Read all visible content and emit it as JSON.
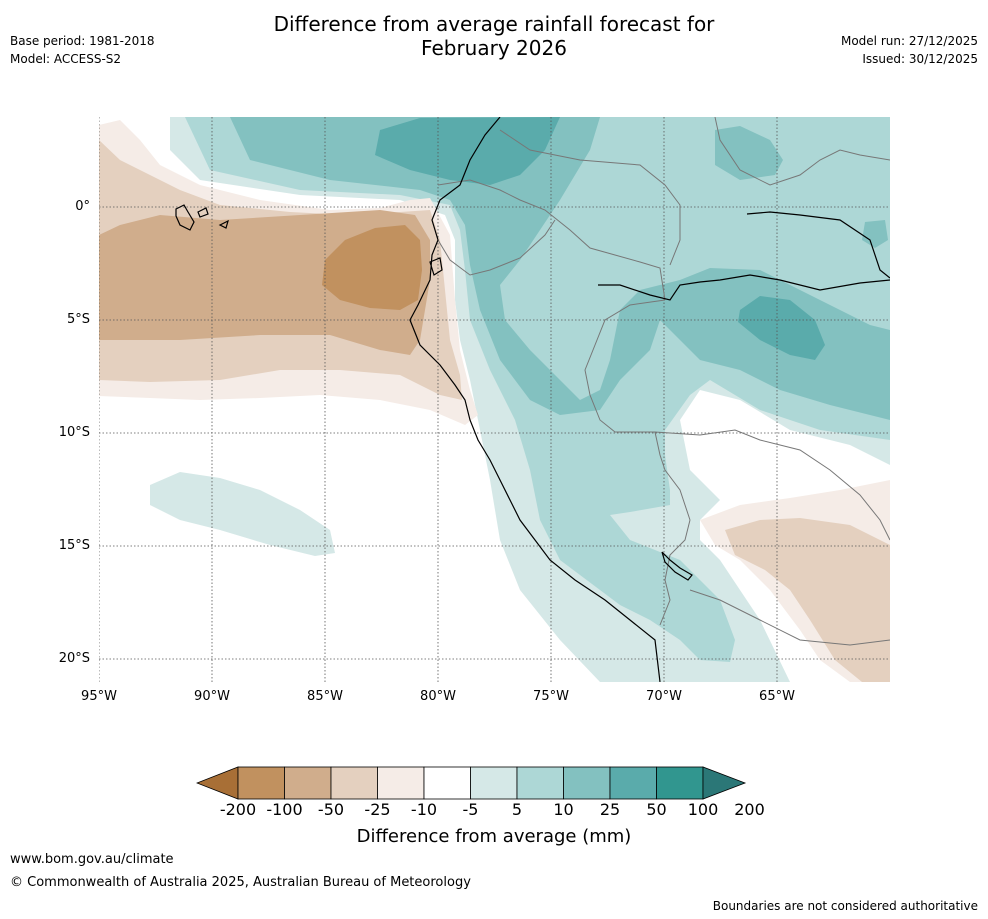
{
  "title": {
    "line1": "Difference from average rainfall forecast for",
    "line2": "February 2026"
  },
  "meta": {
    "base_period": "Base period: 1981-2018",
    "model": "Model: ACCESS-S2",
    "model_run": "Model run: 27/12/2025",
    "issued": "Issued: 30/12/2025"
  },
  "map": {
    "region": "Western South America",
    "lon_range": [
      -95,
      -60
    ],
    "lat_range": [
      -21,
      4
    ],
    "lat_labels": [
      "0°",
      "5°S",
      "10°S",
      "15°S",
      "20°S"
    ],
    "lon_labels": [
      "95°W",
      "90°W",
      "85°W",
      "80°W",
      "75°W",
      "70°W",
      "65°W"
    ]
  },
  "legend": {
    "title": "Difference from average (mm)",
    "tick_labels": [
      "-200",
      "-100",
      "-50",
      "-25",
      "-10",
      "-5",
      "5",
      "10",
      "25",
      "50",
      "100",
      "200"
    ],
    "colors": [
      "#a86f36",
      "#c1915f",
      "#d0ad8c",
      "#e4d0bf",
      "#f5ece7",
      "#ffffff",
      "#d5e8e7",
      "#add7d6",
      "#83c1c0",
      "#5aabab",
      "#31968f",
      "#2b7777"
    ]
  },
  "footer": {
    "url": "www.bom.gov.au/climate",
    "copyright": "© Commonwealth of Australia 2025, Australian Bureau of Meteorology",
    "note": "Boundaries are not considered authoritative"
  }
}
